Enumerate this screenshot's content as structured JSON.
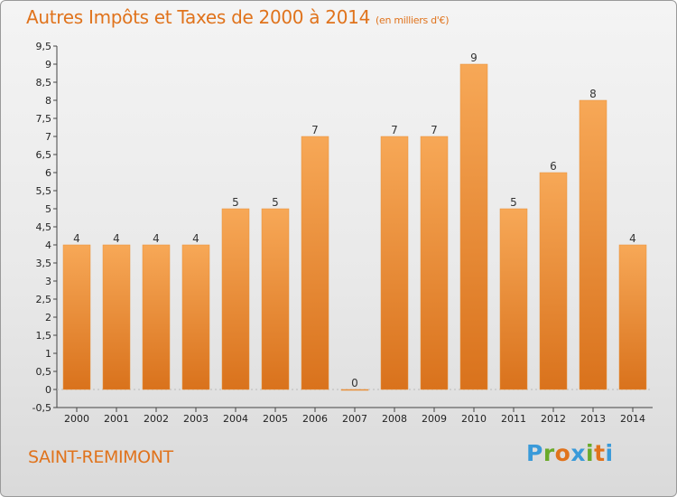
{
  "title": "Autres Impôts et Taxes de 2000 à 2014",
  "subtitle": "(en milliers d'€)",
  "city": "SAINT-REMIMONT",
  "logo": {
    "letters": [
      "P",
      "r",
      "o",
      "x",
      "i",
      "t",
      "i"
    ],
    "colors": [
      "#3a9ad9",
      "#6aaa2a",
      "#e0731c",
      "#3a9ad9",
      "#6aaa2a",
      "#e0731c",
      "#3a9ad9"
    ]
  },
  "chart_data": {
    "type": "bar",
    "categories": [
      "2000",
      "2001",
      "2002",
      "2003",
      "2004",
      "2005",
      "2006",
      "2007",
      "2008",
      "2009",
      "2010",
      "2011",
      "2012",
      "2013",
      "2014"
    ],
    "values": [
      4,
      4,
      4,
      4,
      5,
      5,
      7,
      0,
      7,
      7,
      9,
      5,
      6,
      8,
      4
    ],
    "data_labels": [
      "4",
      "4",
      "4",
      "4",
      "5",
      "5",
      "7",
      "0",
      "7",
      "7",
      "9",
      "5",
      "6",
      "8",
      "4"
    ],
    "y_ticks": [
      "-0,5",
      "0",
      "0,5",
      "1",
      "1,5",
      "2",
      "2,5",
      "3",
      "3,5",
      "4",
      "4,5",
      "5",
      "5,5",
      "6",
      "6,5",
      "7",
      "7,5",
      "8",
      "8,5",
      "9",
      "9,5"
    ],
    "ylim": [
      -0.5,
      9.5
    ],
    "bar_color": "#f08a2a",
    "grid": false
  }
}
